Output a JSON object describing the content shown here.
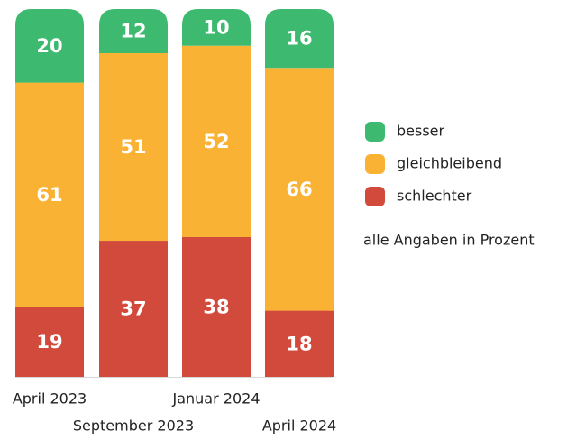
{
  "chart_data": {
    "type": "stacked_bar",
    "categories": [
      "April 2023",
      "September 2023",
      "Januar 2024",
      "April 2024"
    ],
    "series": [
      {
        "name": "schlechter",
        "color": "#d24a3c",
        "values": [
          19,
          37,
          38,
          18
        ]
      },
      {
        "name": "gleichbleibend",
        "color": "#f9b233",
        "values": [
          61,
          51,
          52,
          66
        ]
      },
      {
        "name": "besser",
        "color": "#3dba6f",
        "values": [
          20,
          12,
          10,
          16
        ]
      }
    ],
    "legend_order": [
      "besser",
      "gleichbleibend",
      "schlechter"
    ],
    "note": "alle Angaben in Prozent",
    "ylim": [
      0,
      100
    ]
  }
}
